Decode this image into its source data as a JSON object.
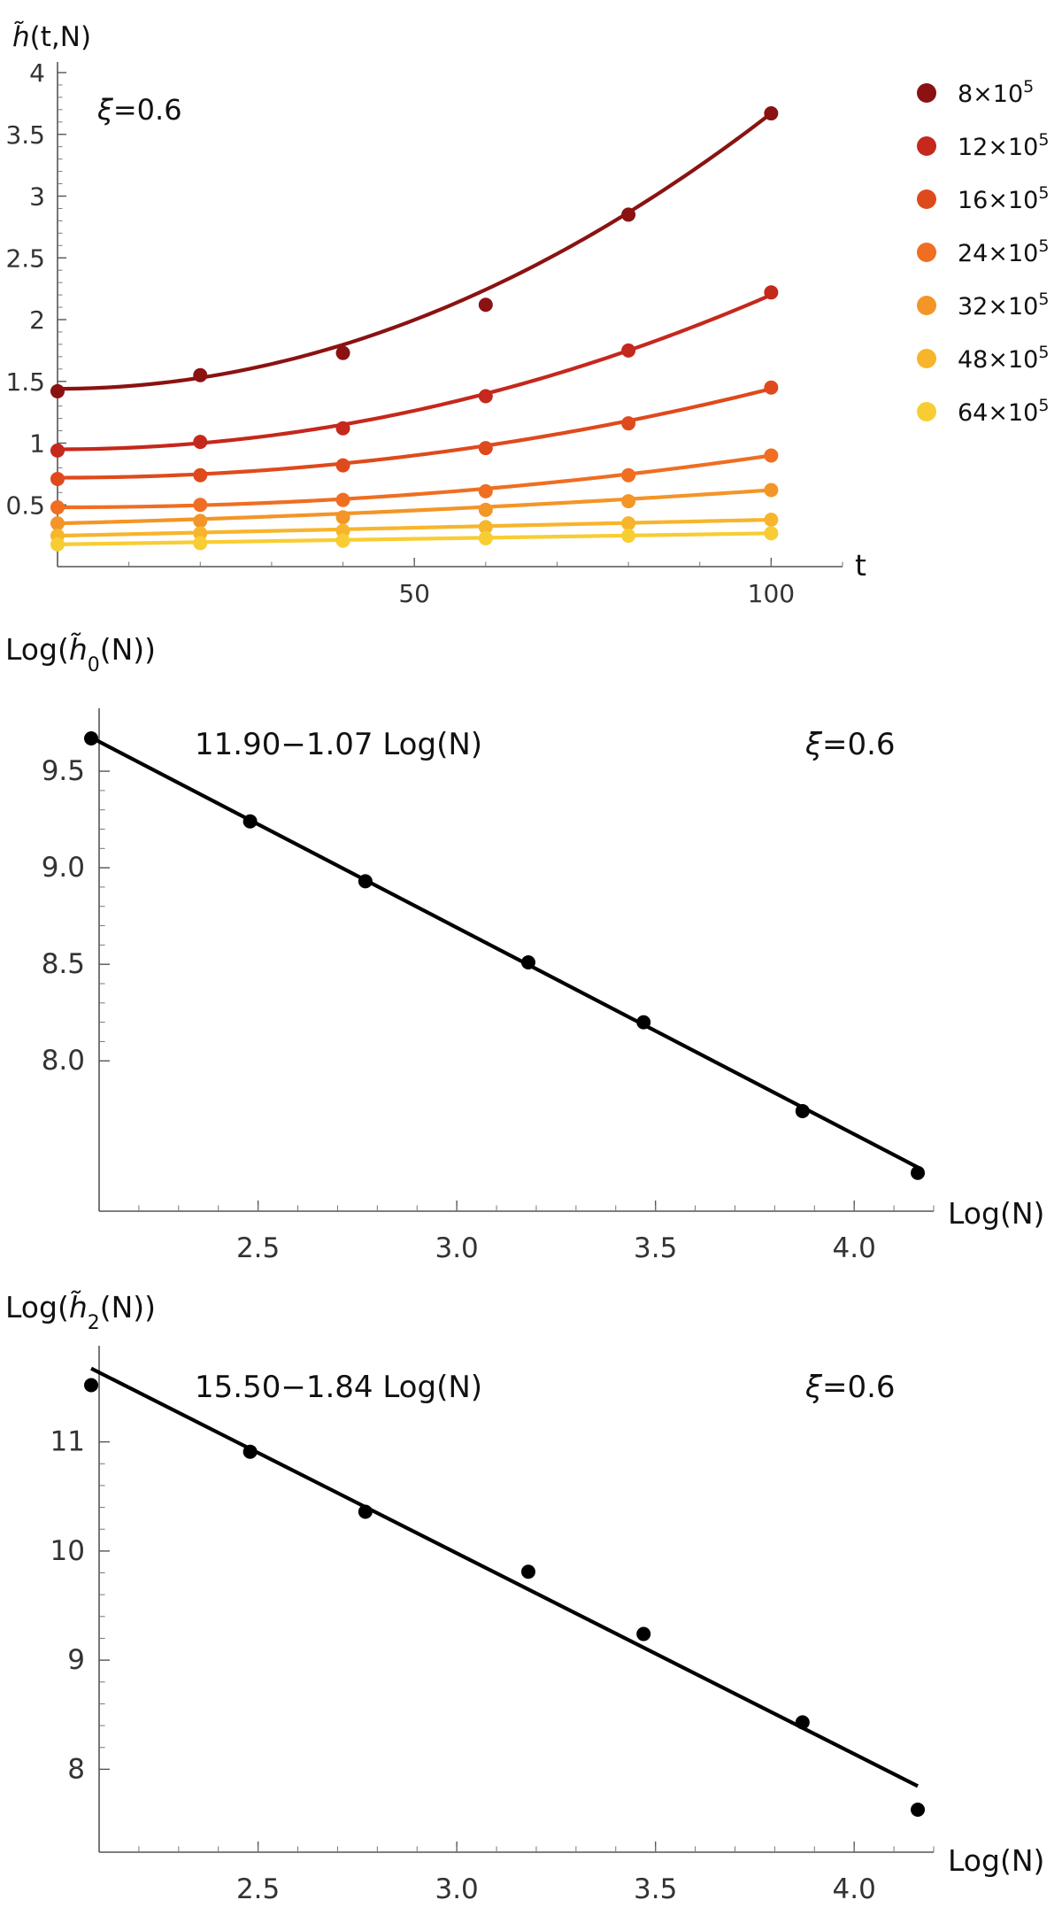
{
  "chart_data": [
    {
      "type": "line",
      "ylabel_parts": [
        "h̃",
        "(t,N)"
      ],
      "xlabel": "t",
      "annotation": {
        "symbol": "ξ",
        "text": "=0.6"
      },
      "xlim": [
        0,
        110
      ],
      "ylim": [
        0,
        4
      ],
      "xticks": [
        50,
        100
      ],
      "xtick_labels": [
        "50",
        "100"
      ],
      "yticks": [
        0.5,
        1,
        1.5,
        2,
        2.5,
        3,
        3.5,
        4
      ],
      "ytick_labels": [
        "0.5",
        "1",
        "1.5",
        "2",
        "2.5",
        "3",
        "3.5",
        "4"
      ],
      "x": [
        0,
        20,
        40,
        60,
        80,
        100
      ],
      "series": [
        {
          "name": "8×10",
          "name_exp": "5",
          "color": "#8b1212",
          "values": [
            1.42,
            1.55,
            1.73,
            2.12,
            2.85,
            3.67
          ],
          "fit": [
            1.44,
            0.0,
            0.000223
          ]
        },
        {
          "name": "12×10",
          "name_exp": "5",
          "color": "#c5281c",
          "values": [
            0.94,
            1.01,
            1.12,
            1.38,
            1.75,
            2.22
          ],
          "fit": [
            0.95,
            0.0,
            0.000125
          ]
        },
        {
          "name": "16×10",
          "name_exp": "5",
          "color": "#df4a1c",
          "values": [
            0.71,
            0.74,
            0.82,
            0.96,
            1.16,
            1.45
          ],
          "fit": [
            0.72,
            0.0,
            7.2e-05
          ]
        },
        {
          "name": "24×10",
          "name_exp": "5",
          "color": "#ef6e22",
          "values": [
            0.48,
            0.5,
            0.54,
            0.61,
            0.74,
            0.9
          ],
          "fit": [
            0.48,
            0.0,
            4.2e-05
          ]
        },
        {
          "name": "32×10",
          "name_exp": "5",
          "color": "#f39527",
          "values": [
            0.35,
            0.37,
            0.4,
            0.46,
            0.53,
            0.62
          ],
          "fit": [
            0.35,
            0.0015,
            1.2e-05
          ]
        },
        {
          "name": "48×10",
          "name_exp": "5",
          "color": "#f7b52c",
          "values": [
            0.25,
            0.27,
            0.29,
            0.32,
            0.35,
            0.38
          ],
          "fit": [
            0.25,
            0.0013,
            0.0
          ]
        },
        {
          "name": "64×10",
          "name_exp": "5",
          "color": "#f8cd33",
          "values": [
            0.18,
            0.19,
            0.21,
            0.23,
            0.25,
            0.27
          ],
          "fit": [
            0.18,
            0.0009,
            0.0
          ]
        }
      ]
    },
    {
      "type": "scatter",
      "ylabel_parts": [
        "Log(",
        "h̃",
        "0",
        "(N))"
      ],
      "xlabel": "Log(N)",
      "fit_label": "11.90−1.07 Log(N)",
      "annotation": {
        "symbol": "ξ",
        "text": "=0.6"
      },
      "xlim": [
        2.1,
        4.2
      ],
      "ylim": [
        7.35,
        9.78
      ],
      "xticks": [
        2.5,
        3.0,
        3.5,
        4.0
      ],
      "xtick_labels": [
        "2.5",
        "3.0",
        "3.5",
        "4.0"
      ],
      "yticks": [
        8.0,
        8.5,
        9.0,
        9.5
      ],
      "ytick_labels": [
        "8.0",
        "8.5",
        "9.0",
        "9.5"
      ],
      "x": [
        2.08,
        2.48,
        2.77,
        3.18,
        3.47,
        3.87,
        4.16
      ],
      "values": [
        9.67,
        9.24,
        8.93,
        8.51,
        8.2,
        7.74,
        7.42
      ],
      "fit": {
        "intercept": 11.9,
        "slope": -1.07
      }
    },
    {
      "type": "scatter",
      "ylabel_parts": [
        "Log(",
        "h̃",
        "2",
        "(N))"
      ],
      "xlabel": "Log(N)",
      "fit_label": "15.50−1.84 Log(N)",
      "annotation": {
        "symbol": "ξ",
        "text": "=0.6"
      },
      "xlim": [
        2.1,
        4.2
      ],
      "ylim": [
        7.5,
        11.8
      ],
      "xticks": [
        2.5,
        3.0,
        3.5,
        4.0
      ],
      "xtick_labels": [
        "2.5",
        "3.0",
        "3.5",
        "4.0"
      ],
      "yticks": [
        8,
        9,
        10,
        11
      ],
      "ytick_labels": [
        "8",
        "9",
        "10",
        "11"
      ],
      "x": [
        2.08,
        2.48,
        2.77,
        3.18,
        3.47,
        3.87,
        4.16
      ],
      "values": [
        11.52,
        10.91,
        10.36,
        9.81,
        9.24,
        8.43,
        7.63
      ],
      "fit": {
        "intercept": 15.5,
        "slope": -1.84
      }
    }
  ]
}
